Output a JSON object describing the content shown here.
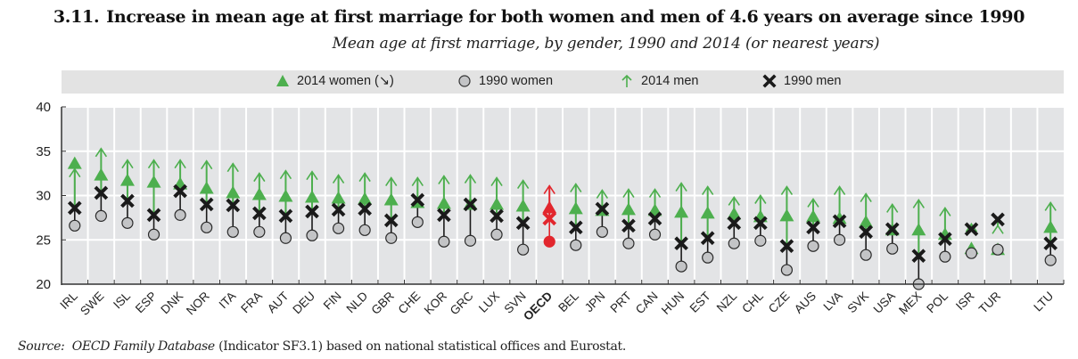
{
  "header": {
    "number": "3.11.",
    "title": "Increase in mean age at first marriage for both women and men of 4.6 years on average since 1990",
    "subtitle": "Mean age at first marriage, by gender, 1990 and 2014 (or nearest years)"
  },
  "legend": {
    "items": [
      {
        "label": "2014 women (↘)",
        "icon": "triangle-up-green"
      },
      {
        "label": "1990 women",
        "icon": "circle-gray"
      },
      {
        "label": "2014 men",
        "icon": "arrow-up-green"
      },
      {
        "label": "1990 men",
        "icon": "cross-black"
      }
    ]
  },
  "colors": {
    "green": "#4daf4e",
    "gray_fill": "#c3c4c6",
    "black": "#1a1a1a",
    "oecd_red": "#e2262d",
    "plot_bg": "#e3e4e6",
    "grid": "#ffffff"
  },
  "source": {
    "prefix": "Source:",
    "italic": "OECD Family Database",
    "rest": "(Indicator SF3.1) based on national statistical offices and Eurostat."
  },
  "chart_data": {
    "type": "scatter",
    "title": "Increase in mean age at first marriage for both women and men of 4.6 years on average since 1990",
    "subtitle": "Mean age at first marriage, by gender, 1990 and 2014 (or nearest years)",
    "xlabel": "",
    "ylabel": "",
    "ylim": [
      20,
      40
    ],
    "yticks": [
      20,
      25,
      30,
      35,
      40
    ],
    "grid": true,
    "legend_position": "top",
    "highlight": "OECD",
    "categories": [
      "IRL",
      "SWE",
      "ISL",
      "ESP",
      "DNK",
      "NOR",
      "ITA",
      "FRA",
      "AUT",
      "DEU",
      "FIN",
      "NLD",
      "GBR",
      "CHE",
      "KOR",
      "GRC",
      "LUX",
      "SVN",
      "OECD",
      "BEL",
      "JPN",
      "PRT",
      "CAN",
      "HUN",
      "EST",
      "NZL",
      "CHL",
      "CZE",
      "AUS",
      "LVA",
      "SVK",
      "USA",
      "MEX",
      "POL",
      "ISR",
      "TUR",
      "",
      "LTU"
    ],
    "series": [
      {
        "name": "2014 women",
        "values": [
          33.6,
          32.3,
          31.7,
          31.5,
          31.3,
          30.8,
          30.3,
          30.1,
          29.9,
          29.8,
          29.7,
          29.6,
          29.5,
          29.2,
          29.1,
          29.0,
          29.0,
          28.8,
          28.6,
          28.5,
          28.3,
          28.4,
          28.3,
          28.1,
          28.0,
          27.9,
          27.6,
          27.7,
          27.6,
          27.4,
          27.0,
          26.1,
          26.1,
          25.6,
          24.0,
          23.9,
          null,
          26.4
        ]
      },
      {
        "name": "1990 women",
        "values": [
          26.6,
          27.7,
          26.9,
          25.6,
          27.8,
          26.4,
          25.9,
          25.9,
          25.2,
          25.5,
          26.3,
          26.1,
          25.2,
          27.0,
          24.8,
          24.9,
          25.6,
          23.9,
          24.8,
          24.4,
          25.9,
          24.6,
          25.6,
          22.0,
          23.0,
          24.6,
          24.9,
          21.6,
          24.3,
          25.0,
          23.3,
          24.0,
          20.0,
          23.1,
          23.5,
          23.9,
          null,
          22.7
        ]
      },
      {
        "name": "2014 men",
        "values": [
          33.0,
          35.3,
          34.0,
          34.0,
          34.0,
          33.9,
          33.6,
          32.5,
          32.8,
          32.7,
          32.3,
          32.5,
          32.0,
          32.0,
          32.2,
          32.3,
          32.0,
          31.7,
          31.1,
          31.3,
          30.6,
          30.7,
          30.7,
          31.4,
          31.0,
          29.8,
          30.0,
          31.0,
          29.6,
          31.0,
          30.2,
          29.0,
          29.5,
          28.6,
          26.8,
          26.6,
          null,
          29.2
        ]
      },
      {
        "name": "1990 men",
        "values": [
          28.6,
          30.3,
          29.4,
          27.8,
          30.5,
          29.0,
          28.9,
          28.0,
          27.7,
          28.2,
          28.4,
          28.5,
          27.2,
          29.5,
          27.8,
          29.0,
          27.7,
          26.9,
          27.4,
          26.4,
          28.5,
          26.6,
          27.4,
          24.6,
          25.2,
          26.9,
          26.9,
          24.3,
          26.4,
          27.1,
          25.9,
          26.2,
          23.2,
          25.1,
          26.2,
          27.3,
          null,
          24.6
        ]
      }
    ]
  }
}
